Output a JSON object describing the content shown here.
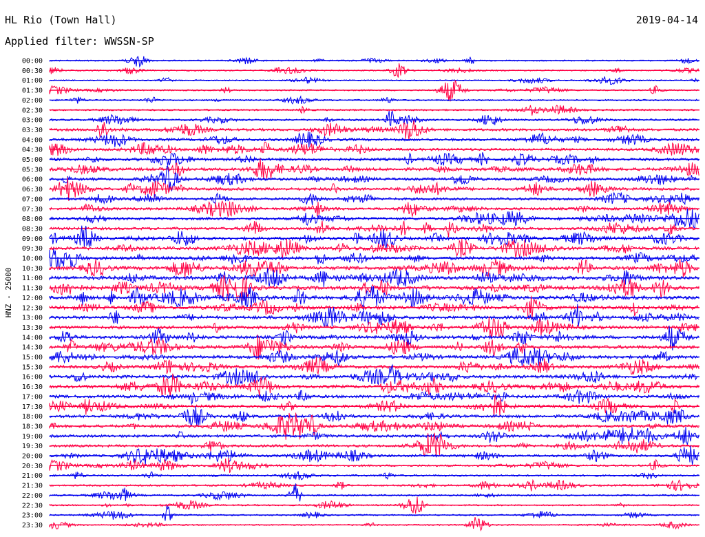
{
  "header": {
    "station": "HL Rio (Town Hall)",
    "date": "2019-04-14",
    "filter": "Applied filter: WWSSN-SP"
  },
  "chart_data": {
    "type": "line",
    "ylabel": "HNZ - 25000",
    "colors": [
      "#0000ee",
      "#ff0044"
    ],
    "rows": [
      "00:00",
      "00:30",
      "01:00",
      "01:30",
      "02:00",
      "02:30",
      "03:00",
      "03:30",
      "04:00",
      "04:30",
      "05:00",
      "05:30",
      "06:00",
      "06:30",
      "07:00",
      "07:30",
      "08:00",
      "08:30",
      "09:00",
      "09:30",
      "10:00",
      "10:30",
      "11:00",
      "11:30",
      "12:00",
      "12:30",
      "13:00",
      "13:30",
      "14:00",
      "14:30",
      "15:00",
      "15:30",
      "16:00",
      "16:30",
      "17:00",
      "17:30",
      "18:00",
      "18:30",
      "19:00",
      "19:30",
      "20:00",
      "20:30",
      "21:00",
      "21:30",
      "22:00",
      "22:30",
      "23:00",
      "23:30"
    ],
    "activity": [
      0.15,
      0.15,
      0.12,
      0.18,
      0.22,
      0.25,
      0.35,
      0.55,
      0.6,
      0.55,
      0.65,
      0.7,
      0.6,
      0.65,
      0.55,
      0.55,
      0.6,
      0.6,
      0.7,
      0.75,
      0.75,
      0.85,
      0.9,
      0.9,
      0.9,
      0.85,
      0.8,
      0.75,
      0.75,
      0.8,
      0.75,
      0.7,
      0.75,
      0.75,
      0.7,
      0.7,
      0.65,
      0.65,
      0.6,
      0.55,
      0.5,
      0.35,
      0.3,
      0.3,
      0.25,
      0.2,
      0.2,
      0.15
    ]
  }
}
